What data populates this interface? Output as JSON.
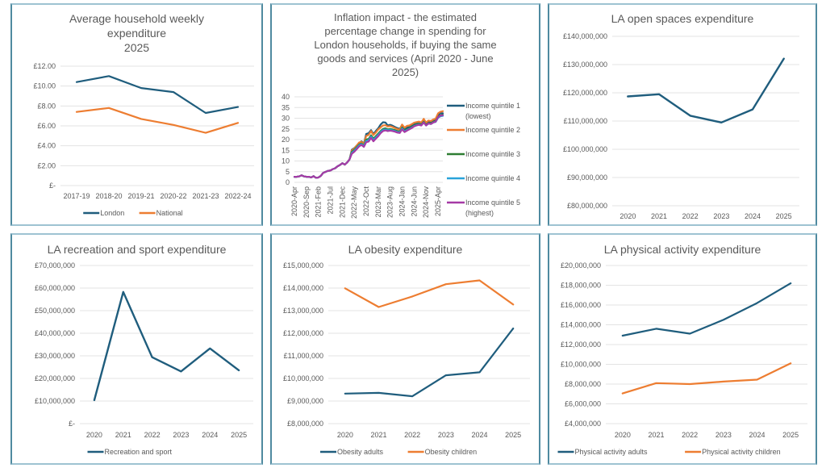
{
  "colors": {
    "blue": "#1f5d7d",
    "orange": "#ed7d31",
    "green": "#2e7d32",
    "light_blue": "#29a3d9",
    "purple": "#a63aa6",
    "panel_border": "#4f8aa0"
  },
  "chart_data": [
    {
      "id": "weekly",
      "type": "line",
      "title": [
        "Average household weekly",
        "expenditure",
        "2025"
      ],
      "xlabel": "",
      "ylabel": "",
      "categories": [
        "2017-19",
        "2018-20",
        "2019-21",
        "2020-22",
        "2021-23",
        "2022-24"
      ],
      "ylim": [
        0,
        12
      ],
      "yticks": [
        0,
        2,
        4,
        6,
        8,
        10,
        12
      ],
      "ytick_labels": [
        "£-",
        "£2.00",
        "£4.00",
        "£6.00",
        "£8.00",
        "£10.00",
        "£12.00"
      ],
      "grid": true,
      "legend": "bottom",
      "series": [
        {
          "name": "London",
          "color": "#1f5d7d",
          "values": [
            10.4,
            11.0,
            9.8,
            9.4,
            7.3,
            7.9
          ]
        },
        {
          "name": "National",
          "color": "#ed7d31",
          "values": [
            7.4,
            7.8,
            6.7,
            6.1,
            5.3,
            6.3
          ]
        }
      ]
    },
    {
      "id": "inflation",
      "type": "line",
      "title": [
        "Inflation impact - the estimated",
        "percentage change in spending for",
        "London households, if buying the same",
        "goods and services (April 2020 - June",
        "2025)"
      ],
      "xlabel": "",
      "ylabel": "",
      "ylim": [
        0,
        40
      ],
      "yticks": [
        0,
        5,
        10,
        15,
        20,
        25,
        30,
        35,
        40
      ],
      "ytick_labels": [
        "0",
        "5",
        "10",
        "15",
        "20",
        "25",
        "30",
        "35",
        "40"
      ],
      "xtick_labels": [
        "2020-Apr",
        "2020-Sep",
        "2021-Feb",
        "2021-Jul",
        "2021-Dec",
        "2022-May",
        "2022-Oct",
        "2023-Mar",
        "2023-Aug",
        "2024-Jan",
        "2024-Jun",
        "2024-Nov",
        "2025-Apr"
      ],
      "x_months": [
        "2020-04",
        "2020-05",
        "2020-06",
        "2020-07",
        "2020-08",
        "2020-09",
        "2020-10",
        "2020-11",
        "2020-12",
        "2021-01",
        "2021-02",
        "2021-03",
        "2021-04",
        "2021-05",
        "2021-06",
        "2021-07",
        "2021-08",
        "2021-09",
        "2021-10",
        "2021-11",
        "2021-12",
        "2022-01",
        "2022-02",
        "2022-03",
        "2022-04",
        "2022-05",
        "2022-06",
        "2022-07",
        "2022-08",
        "2022-09",
        "2022-10",
        "2022-11",
        "2022-12",
        "2023-01",
        "2023-02",
        "2023-03",
        "2023-04",
        "2023-05",
        "2023-06",
        "2023-07",
        "2023-08",
        "2023-09",
        "2023-10",
        "2023-11",
        "2023-12",
        "2024-01",
        "2024-02",
        "2024-03",
        "2024-04",
        "2024-05",
        "2024-06",
        "2024-07",
        "2024-08",
        "2024-09",
        "2024-10",
        "2024-11",
        "2024-12",
        "2025-01",
        "2025-02",
        "2025-03",
        "2025-04",
        "2025-05",
        "2025-06"
      ],
      "grid": true,
      "legend": "right",
      "series": [
        {
          "name": "Income quintile 1 (lowest)",
          "color": "#1f5d7d",
          "values": [
            2.6,
            2.6,
            2.8,
            3.3,
            2.8,
            2.6,
            2.6,
            2.3,
            2.9,
            2.1,
            2.3,
            3.0,
            4.4,
            4.9,
            5.4,
            5.5,
            6.2,
            6.6,
            7.5,
            8.1,
            9.0,
            8.3,
            9.3,
            10.7,
            15.3,
            16.0,
            17.2,
            18.2,
            19.2,
            18.1,
            22.6,
            23.0,
            24.4,
            22.6,
            24.0,
            25.3,
            27.0,
            28.1,
            28.0,
            26.6,
            26.9,
            26.5,
            25.9,
            25.4,
            25.0,
            26.9,
            24.7,
            25.6,
            26.0,
            26.6,
            27.4,
            27.8,
            28.1,
            27.8,
            29.2,
            27.5,
            28.3,
            28.0,
            29.0,
            29.3,
            31.5,
            32.3,
            32.3
          ]
        },
        {
          "name": "Income quintile 2",
          "color": "#ed7d31",
          "values": [
            2.6,
            2.6,
            2.8,
            3.3,
            2.8,
            2.6,
            2.6,
            2.3,
            2.9,
            2.1,
            2.3,
            3.0,
            4.4,
            4.9,
            5.4,
            5.5,
            6.2,
            6.6,
            7.5,
            8.1,
            9.0,
            8.3,
            9.3,
            10.7,
            14.9,
            15.8,
            17.2,
            18.6,
            19.0,
            18.0,
            21.7,
            22.2,
            24.0,
            22.1,
            23.3,
            24.7,
            25.7,
            26.6,
            26.7,
            26.1,
            26.3,
            25.9,
            25.4,
            24.9,
            24.6,
            27.0,
            25.6,
            26.4,
            26.6,
            27.2,
            27.9,
            28.2,
            28.4,
            28.0,
            29.7,
            28.0,
            28.9,
            28.7,
            29.4,
            29.8,
            32.3,
            33.0,
            33.3
          ]
        },
        {
          "name": "Income quintile 3",
          "color": "#2e7d32",
          "values": [
            2.6,
            2.6,
            2.8,
            3.3,
            2.8,
            2.6,
            2.6,
            2.3,
            2.9,
            2.1,
            2.3,
            3.0,
            4.4,
            4.9,
            5.4,
            5.5,
            6.2,
            6.6,
            7.5,
            8.1,
            9.0,
            8.3,
            9.3,
            10.7,
            14.3,
            15.2,
            16.4,
            17.6,
            18.2,
            17.3,
            20.0,
            20.3,
            22.0,
            20.4,
            21.6,
            22.8,
            24.0,
            25.0,
            25.3,
            24.8,
            25.0,
            24.7,
            24.4,
            24.0,
            23.8,
            25.6,
            24.1,
            24.8,
            25.3,
            25.9,
            26.6,
            27.0,
            27.3,
            27.0,
            28.3,
            26.9,
            27.8,
            27.6,
            28.3,
            28.6,
            30.6,
            31.3,
            31.6
          ]
        },
        {
          "name": "Income quintile 4",
          "color": "#29a3d9",
          "values": [
            2.6,
            2.6,
            2.8,
            3.3,
            2.8,
            2.6,
            2.6,
            2.3,
            2.9,
            2.1,
            2.3,
            3.0,
            4.4,
            4.9,
            5.4,
            5.5,
            6.2,
            6.6,
            7.5,
            8.1,
            9.0,
            8.3,
            9.3,
            10.7,
            13.9,
            14.8,
            16.0,
            17.3,
            17.9,
            17.0,
            19.4,
            19.7,
            21.4,
            19.8,
            21.0,
            22.2,
            23.5,
            24.5,
            24.8,
            24.4,
            24.6,
            24.3,
            24.0,
            23.6,
            23.4,
            25.2,
            23.8,
            24.5,
            25.0,
            25.6,
            26.3,
            26.7,
            27.0,
            26.7,
            28.0,
            26.6,
            27.5,
            27.3,
            28.0,
            28.3,
            30.2,
            30.9,
            31.1
          ]
        },
        {
          "name": "Income quintile 5 (highest)",
          "color": "#a63aa6",
          "values": [
            2.6,
            2.6,
            2.8,
            3.3,
            2.8,
            2.6,
            2.6,
            2.3,
            2.9,
            2.1,
            2.3,
            3.0,
            4.4,
            4.9,
            5.4,
            5.5,
            6.2,
            6.6,
            7.5,
            8.1,
            9.0,
            8.3,
            9.3,
            10.7,
            13.4,
            14.3,
            15.5,
            16.8,
            17.5,
            16.6,
            18.8,
            19.1,
            20.8,
            19.2,
            20.4,
            21.6,
            23.0,
            24.0,
            24.3,
            24.0,
            24.2,
            24.0,
            23.7,
            23.3,
            23.1,
            24.8,
            23.5,
            24.2,
            24.8,
            25.4,
            26.2,
            26.6,
            26.9,
            26.6,
            28.0,
            26.6,
            27.6,
            27.3,
            28.0,
            28.4,
            30.5,
            31.2,
            31.4
          ]
        }
      ]
    },
    {
      "id": "open_spaces",
      "type": "line",
      "title": [
        "LA open spaces expenditure"
      ],
      "xlabel": "",
      "ylabel": "",
      "categories": [
        "2020",
        "2021",
        "2022",
        "2023",
        "2024",
        "2025"
      ],
      "ylim": [
        80000000,
        140000000
      ],
      "yticks": [
        80000000,
        90000000,
        100000000,
        110000000,
        120000000,
        130000000,
        140000000
      ],
      "ytick_labels": [
        "£80,000,000",
        "£90,000,000",
        "£100,000,000",
        "£110,000,000",
        "£120,000,000",
        "£130,000,000",
        "£140,000,000"
      ],
      "grid": true,
      "legend": "none",
      "series": [
        {
          "name": "Open spaces",
          "color": "#1f5d7d",
          "values": [
            118700000,
            119500000,
            111900000,
            109500000,
            114100000,
            132100000
          ]
        }
      ]
    },
    {
      "id": "recreation",
      "type": "line",
      "title": [
        "LA recreation and sport expenditure"
      ],
      "xlabel": "",
      "ylabel": "",
      "categories": [
        "2020",
        "2021",
        "2022",
        "2023",
        "2024",
        "2025"
      ],
      "ylim": [
        0,
        70000000
      ],
      "yticks": [
        0,
        10000000,
        20000000,
        30000000,
        40000000,
        50000000,
        60000000,
        70000000
      ],
      "ytick_labels": [
        "£-",
        "£10,000,000",
        "£20,000,000",
        "£30,000,000",
        "£40,000,000",
        "£50,000,000",
        "£60,000,000",
        "£70,000,000"
      ],
      "grid": true,
      "legend": "bottom",
      "series": [
        {
          "name": "Recreation and sport",
          "color": "#1f5d7d",
          "values": [
            10400000,
            58300000,
            29400000,
            23100000,
            33300000,
            23600000
          ]
        }
      ]
    },
    {
      "id": "obesity",
      "type": "line",
      "title": [
        "LA obesity expenditure"
      ],
      "xlabel": "",
      "ylabel": "",
      "categories": [
        "2020",
        "2021",
        "2022",
        "2023",
        "2024",
        "2025"
      ],
      "ylim": [
        8000000,
        15000000
      ],
      "yticks": [
        8000000,
        9000000,
        10000000,
        11000000,
        12000000,
        13000000,
        14000000,
        15000000
      ],
      "ytick_labels": [
        "£8,000,000",
        "£9,000,000",
        "£10,000,000",
        "£11,000,000",
        "£12,000,000",
        "£13,000,000",
        "£14,000,000",
        "£15,000,000"
      ],
      "grid": true,
      "legend": "bottom",
      "series": [
        {
          "name": "Obesity adults",
          "color": "#1f5d7d",
          "values": [
            9330000,
            9360000,
            9210000,
            10140000,
            10270000,
            12210000
          ]
        },
        {
          "name": "Obesity children",
          "color": "#ed7d31",
          "values": [
            13990000,
            13160000,
            13630000,
            14170000,
            14340000,
            13270000
          ]
        }
      ]
    },
    {
      "id": "physical",
      "type": "line",
      "title": [
        "LA physical activity expenditure"
      ],
      "xlabel": "",
      "ylabel": "",
      "categories": [
        "2020",
        "2021",
        "2022",
        "2023",
        "2024",
        "2025"
      ],
      "ylim": [
        4000000,
        20000000
      ],
      "yticks": [
        4000000,
        6000000,
        8000000,
        10000000,
        12000000,
        14000000,
        16000000,
        18000000,
        20000000
      ],
      "ytick_labels": [
        "£4,000,000",
        "£6,000,000",
        "£8,000,000",
        "£10,000,000",
        "£12,000,000",
        "£14,000,000",
        "£16,000,000",
        "£18,000,000",
        "£20,000,000"
      ],
      "grid": true,
      "legend": "bottom",
      "series": [
        {
          "name": "Physical activity adults",
          "color": "#1f5d7d",
          "values": [
            12900000,
            13600000,
            13100000,
            14500000,
            16200000,
            18200000
          ]
        },
        {
          "name": "Physical activity children",
          "color": "#ed7d31",
          "values": [
            7050000,
            8100000,
            8000000,
            8250000,
            8450000,
            10100000
          ]
        }
      ]
    }
  ]
}
